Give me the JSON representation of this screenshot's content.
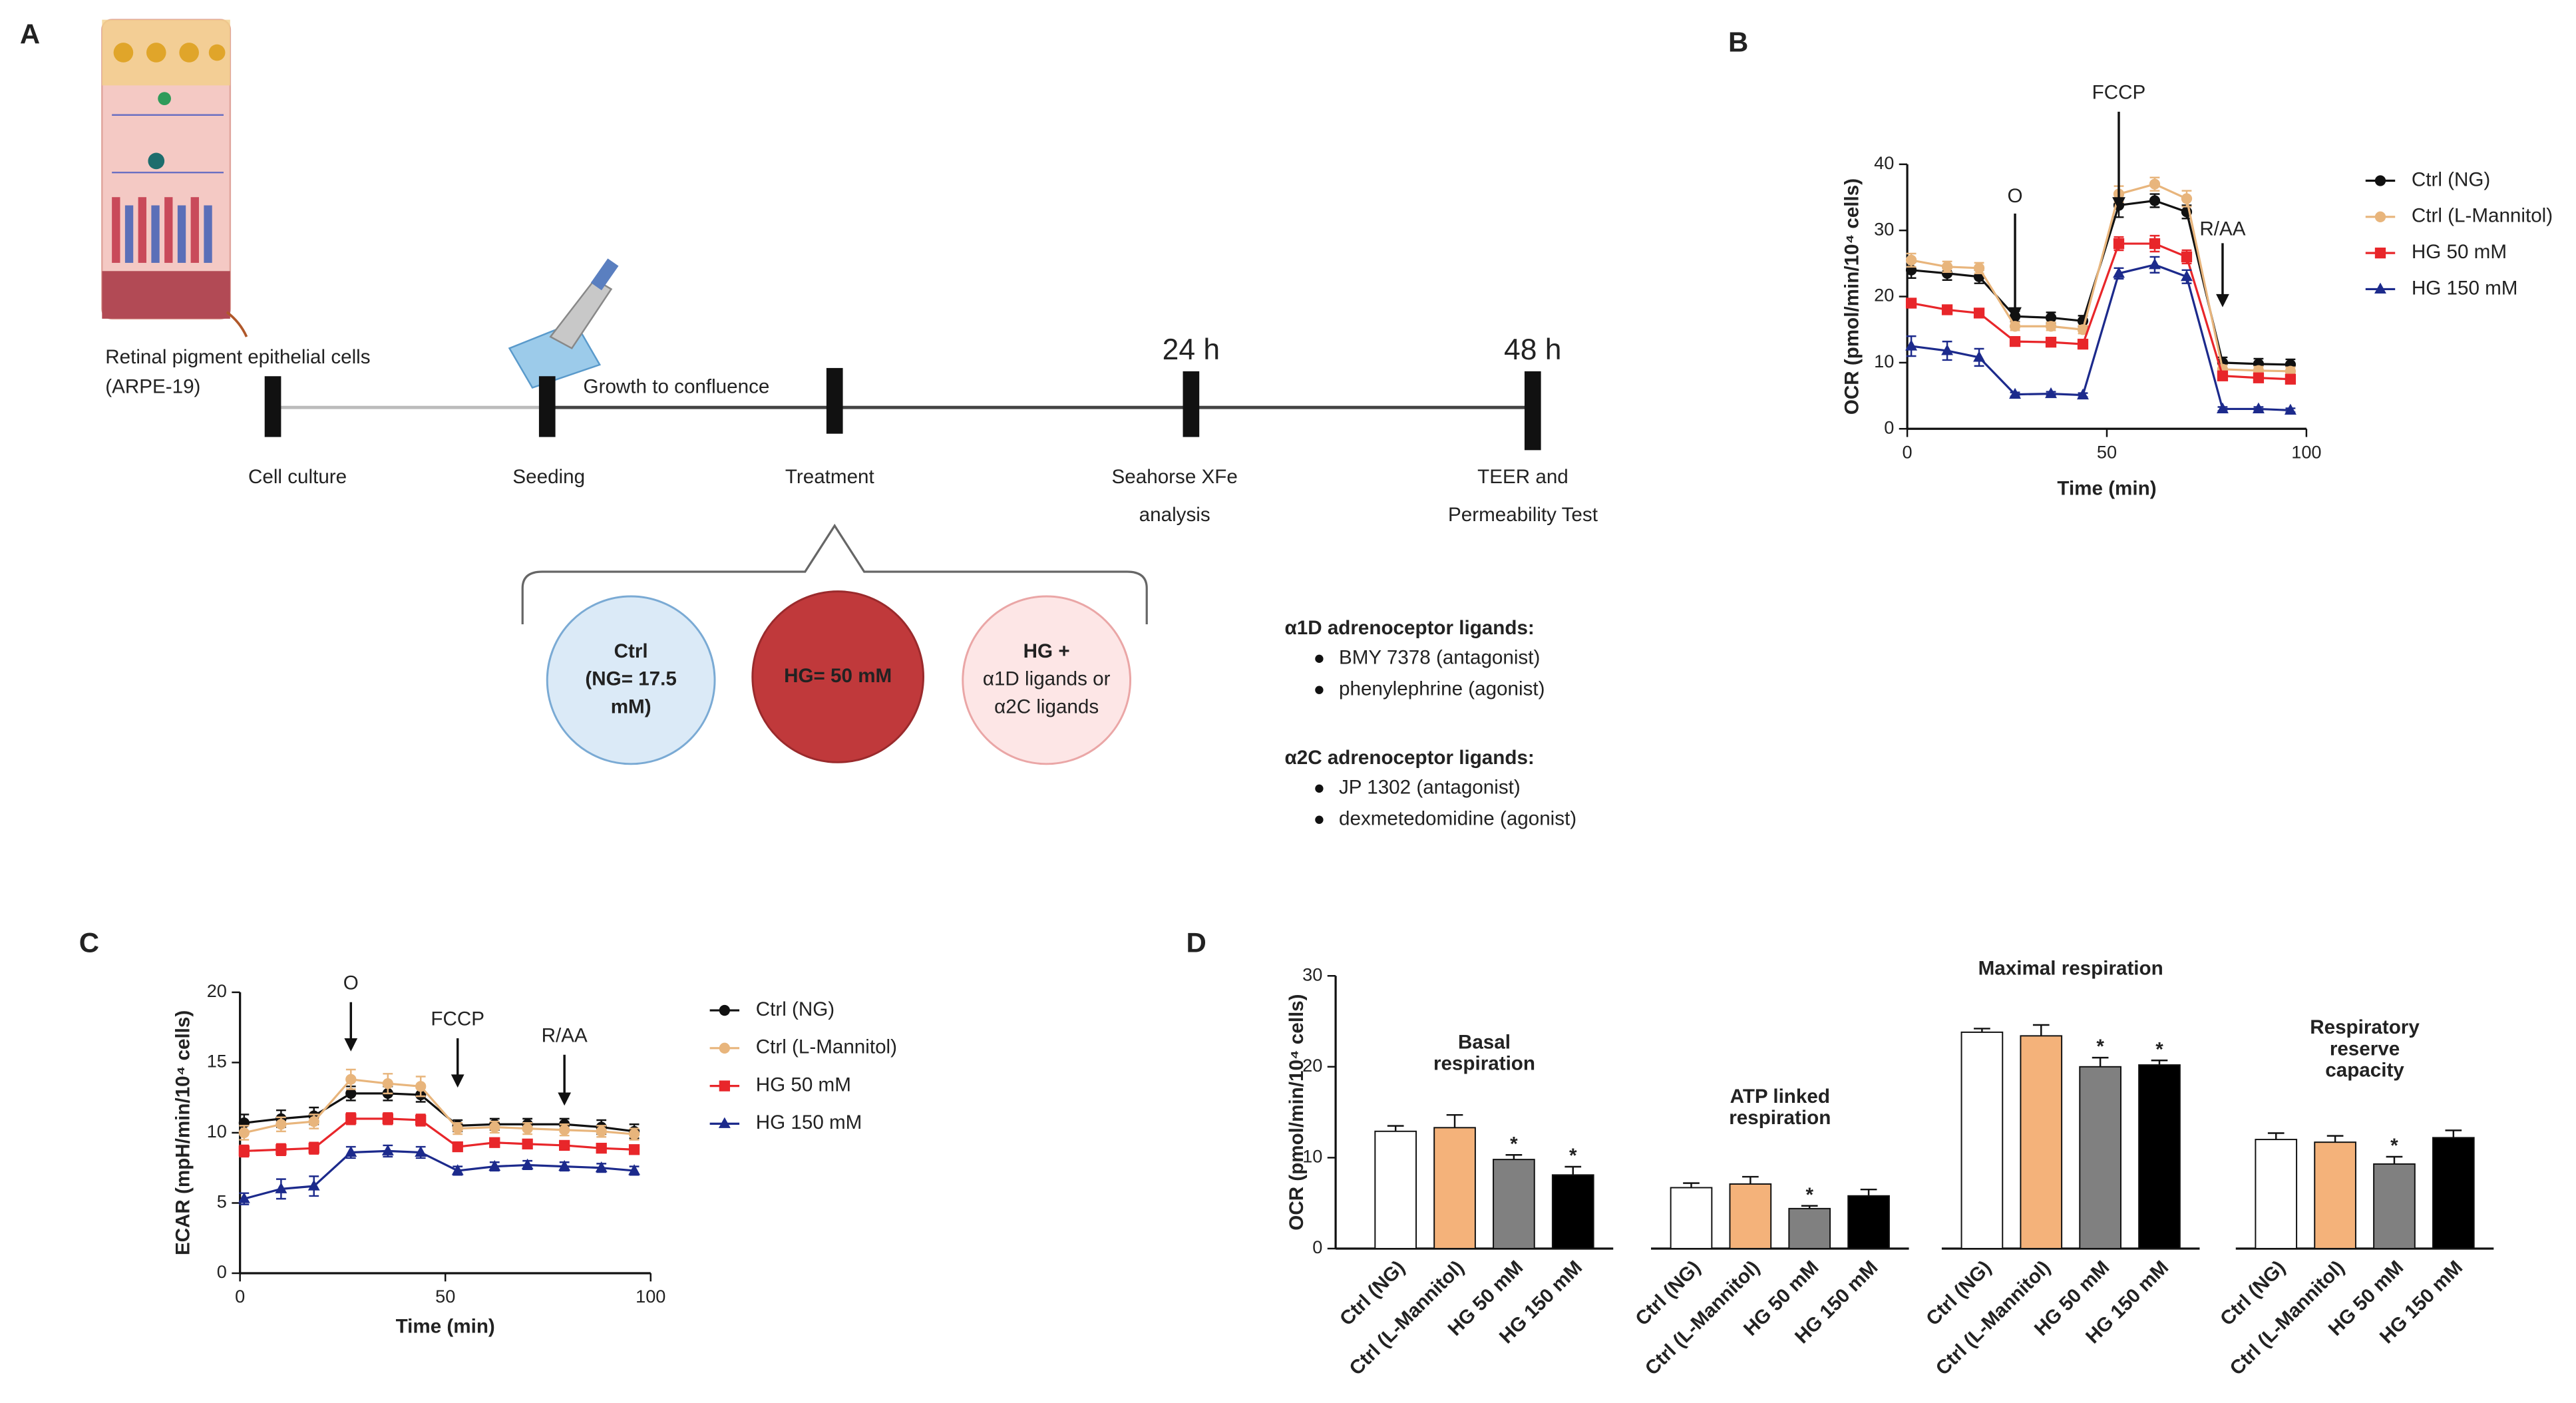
{
  "panel_a": {
    "panel_label": "A",
    "cell_label": [
      "Retinal pigment epithelial cells",
      "(ARPE-19)"
    ],
    "growth_label": "Growth to confluence",
    "times": [
      "24 h",
      "48 h"
    ],
    "stages": [
      [
        "Cell culture"
      ],
      [
        "Seeding"
      ],
      [
        "Treatment"
      ],
      [
        "Seahorse XFe",
        "analysis"
      ],
      [
        "TEER and",
        "Permeability Test"
      ]
    ],
    "circles": [
      [
        "Ctrl",
        "(NG= 17.5",
        "mM)"
      ],
      [
        "HG= 50 mM"
      ],
      [
        "HG +",
        "α1D ligands or",
        "α2C ligands"
      ]
    ],
    "ligands": [
      {
        "heading": "α1D adrenoceptor ligands:",
        "color": "#17a0a0",
        "items": [
          "BMY 7378 (antagonist)",
          "phenylephrine (agonist)"
        ]
      },
      {
        "heading": "α2C adrenoceptor ligands:",
        "color": "#c23aa3",
        "items": [
          "JP 1302 (antagonist)",
          "dexmetedomidine (agonist)"
        ]
      }
    ]
  },
  "chart_data": [
    {
      "type": "line",
      "panel_label": "B",
      "y_label": "OCR (pmol/min/10⁴ cells)",
      "x_label": "Time (min)",
      "x": [
        1,
        10,
        18,
        27,
        36,
        44,
        53,
        62,
        70,
        79,
        88,
        96
      ],
      "xlim": [
        0,
        100
      ],
      "xticks": [
        0,
        50,
        100
      ],
      "ylim": [
        0,
        40
      ],
      "yticks": [
        0,
        10,
        20,
        30,
        40
      ],
      "annotations": [
        {
          "text": "O",
          "x": 27
        },
        {
          "text": "FCCP",
          "x": 53
        },
        {
          "text": "R/AA",
          "x": 79
        }
      ],
      "series": [
        {
          "name": "Ctrl (NG)",
          "color": "#111111",
          "marker": "circle",
          "values": [
            24,
            23.5,
            23,
            17,
            16.8,
            16.3,
            33.8,
            34.5,
            32.8,
            10,
            9.8,
            9.7
          ],
          "errors": [
            1.2,
            1,
            1,
            0.8,
            0.8,
            0.8,
            1.8,
            1,
            1,
            0.8,
            0.8,
            0.8
          ]
        },
        {
          "name": "Ctrl (L-Mannitol)",
          "color": "#e8b57c",
          "marker": "circle",
          "values": [
            25.5,
            24.5,
            24.3,
            15.5,
            15.5,
            15,
            35.5,
            37,
            34.8,
            9,
            8.8,
            8.7
          ],
          "errors": [
            1,
            0.8,
            0.8,
            0.6,
            0.6,
            0.6,
            1.2,
            1,
            1.2,
            0.6,
            0.6,
            0.6
          ]
        },
        {
          "name": "HG 50 mM",
          "color": "#e8262a",
          "marker": "square",
          "values": [
            19,
            18,
            17.5,
            13.2,
            13.1,
            12.8,
            28,
            28,
            26,
            8,
            7.7,
            7.5
          ],
          "errors": [
            0.6,
            0.6,
            0.6,
            0.5,
            0.5,
            0.5,
            1,
            1.2,
            1,
            0.5,
            0.5,
            0.5
          ]
        },
        {
          "name": "HG 150 mM",
          "color": "#1c2a8c",
          "marker": "triangle",
          "values": [
            12.5,
            11.8,
            10.8,
            5.2,
            5.3,
            5.1,
            23.5,
            24.8,
            23,
            3,
            3,
            2.8
          ],
          "errors": [
            1.5,
            1.4,
            1.3,
            0.3,
            0.3,
            0.3,
            0.8,
            1.2,
            1,
            0.3,
            0.3,
            0.3
          ]
        }
      ]
    },
    {
      "type": "line",
      "panel_label": "C",
      "y_label": "ECAR (mpH/min/10⁴ cells)",
      "x_label": "Time (min)",
      "x": [
        1,
        10,
        18,
        27,
        36,
        44,
        53,
        62,
        70,
        79,
        88,
        96
      ],
      "xlim": [
        0,
        100
      ],
      "xticks": [
        0,
        50,
        100
      ],
      "ylim": [
        0,
        20
      ],
      "yticks": [
        0,
        5,
        10,
        15,
        20
      ],
      "annotations": [
        {
          "text": "O",
          "x": 27
        },
        {
          "text": "FCCP",
          "x": 53
        },
        {
          "text": "R/AA",
          "x": 79
        }
      ],
      "series": [
        {
          "name": "Ctrl (NG)",
          "color": "#111111",
          "marker": "circle",
          "values": [
            10.7,
            11,
            11.2,
            12.8,
            12.8,
            12.7,
            10.5,
            10.6,
            10.6,
            10.6,
            10.4,
            10.1
          ],
          "errors": [
            0.6,
            0.6,
            0.6,
            0.5,
            0.5,
            0.5,
            0.4,
            0.4,
            0.4,
            0.4,
            0.5,
            0.5
          ]
        },
        {
          "name": "Ctrl (L-Mannitol)",
          "color": "#e8b57c",
          "marker": "circle",
          "values": [
            10,
            10.6,
            10.8,
            13.8,
            13.5,
            13.3,
            10.3,
            10.4,
            10.3,
            10.2,
            10.1,
            9.9
          ],
          "errors": [
            0.5,
            0.5,
            0.5,
            0.7,
            0.7,
            0.7,
            0.4,
            0.4,
            0.4,
            0.4,
            0.4,
            0.4
          ]
        },
        {
          "name": "HG 50 mM",
          "color": "#e8262a",
          "marker": "square",
          "values": [
            8.7,
            8.8,
            8.9,
            11,
            11,
            10.9,
            9,
            9.3,
            9.2,
            9.1,
            8.9,
            8.8
          ],
          "errors": [
            0.4,
            0.4,
            0.4,
            0.4,
            0.4,
            0.4,
            0.3,
            0.3,
            0.3,
            0.3,
            0.3,
            0.3
          ]
        },
        {
          "name": "HG 150 mM",
          "color": "#1c2a8c",
          "marker": "triangle",
          "values": [
            5.3,
            6,
            6.2,
            8.6,
            8.7,
            8.6,
            7.3,
            7.6,
            7.7,
            7.6,
            7.5,
            7.3
          ],
          "errors": [
            0.4,
            0.7,
            0.7,
            0.4,
            0.4,
            0.4,
            0.3,
            0.3,
            0.3,
            0.3,
            0.3,
            0.3
          ]
        }
      ]
    },
    {
      "type": "bar",
      "panel_label": "D",
      "y_label": "OCR (pmol/min/10⁴ cells)",
      "categories": [
        "Basal respiration",
        "ATP linked respiration",
        "Maximal respiration",
        "Respiratory reserve capacity"
      ],
      "ylim": [
        0,
        30
      ],
      "yticks": [
        0,
        10,
        20,
        30
      ],
      "series": [
        {
          "name": "Ctrl (NG)",
          "color": "#ffffff",
          "values": [
            12.9,
            6.7,
            23.8,
            12
          ],
          "errors": [
            0.6,
            0.5,
            0.4,
            0.7
          ],
          "significance": [
            null,
            null,
            null,
            null
          ]
        },
        {
          "name": "Ctrl (L-Mannitol)",
          "color": "#f4b27a",
          "values": [
            13.3,
            7.1,
            23.4,
            11.7
          ],
          "errors": [
            1.4,
            0.8,
            1.2,
            0.7
          ],
          "significance": [
            null,
            null,
            null,
            null
          ]
        },
        {
          "name": "HG 50 mM",
          "color": "#808080",
          "values": [
            9.8,
            4.4,
            20,
            9.3
          ],
          "errors": [
            0.5,
            0.3,
            1,
            0.8
          ],
          "significance": [
            "*",
            "*",
            "*",
            "*"
          ]
        },
        {
          "name": "HG 150 mM",
          "color": "#000000",
          "values": [
            8.1,
            5.8,
            20.2,
            12.2
          ],
          "errors": [
            0.9,
            0.7,
            0.5,
            0.8
          ],
          "significance": [
            "*",
            null,
            "*",
            null
          ]
        }
      ]
    }
  ]
}
